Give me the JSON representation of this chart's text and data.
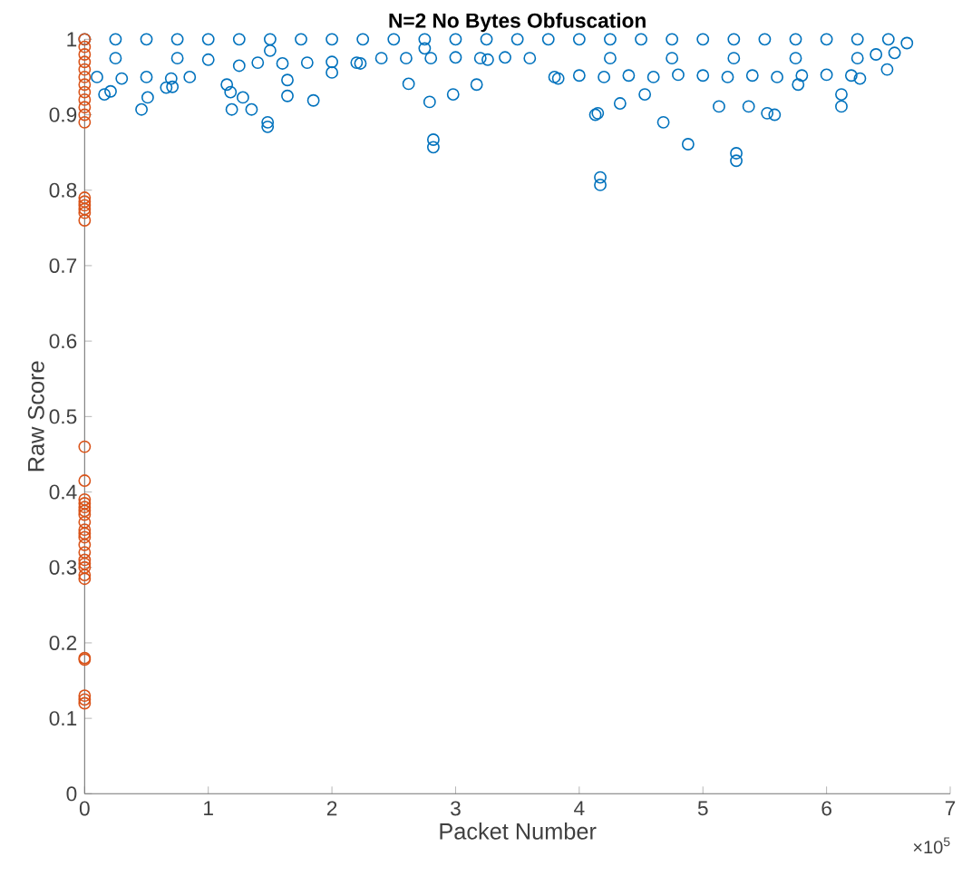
{
  "chart_data": {
    "type": "scatter",
    "title": "N=2 No Bytes Obfuscation",
    "xlabel": "Packet Number",
    "ylabel": "Raw Score",
    "annotations": [
      "×10$^{5}$"
    ],
    "xlim": [
      0,
      7
    ],
    "ylim": [
      0,
      1
    ],
    "xticks": [
      0,
      1,
      2,
      3,
      4,
      5,
      6,
      7
    ],
    "yticks": [
      0,
      0.1,
      0.2,
      0.3,
      0.4,
      0.5,
      0.6,
      0.7,
      0.8,
      0.9,
      1
    ],
    "marker": "circle",
    "grid": false,
    "series": [
      {
        "color": "#0072bd",
        "x": [
          0,
          0.25,
          0.5,
          0.75,
          1,
          1.25,
          1.5,
          1.75,
          2,
          2.25,
          2.5,
          2.75,
          3,
          3.25,
          3.5,
          3.75,
          4,
          4.25,
          4.5,
          4.75,
          5,
          5.25,
          5.5,
          5.75,
          6,
          6.25,
          6.5,
          6.65,
          0.1,
          0.3,
          0.5,
          0.7,
          0.85,
          1,
          1.15,
          1.18,
          1.25,
          1.4,
          1.6,
          1.8,
          2,
          2.2,
          2.4,
          2.6,
          2.8,
          3,
          3.2,
          3.4,
          3.6,
          3.8,
          4,
          4.2,
          4.4,
          4.6,
          4.8,
          5,
          5.2,
          5.4,
          5.6,
          5.8,
          6,
          6.2,
          6.4,
          6.55,
          0.25,
          0.75,
          1.5,
          2.75,
          4.25,
          4.75,
          5.25,
          5.75,
          6.25,
          0.16,
          0.21,
          0.46,
          0.51,
          0.66,
          0.71,
          1.19,
          1.28,
          1.35,
          1.48,
          1.48,
          1.64,
          1.64,
          1.85,
          2,
          2.23,
          2.62,
          2.79,
          2.82,
          2.82,
          2.98,
          3.17,
          3.26,
          3.83,
          4.13,
          4.15,
          4.17,
          4.17,
          4.33,
          4.53,
          4.68,
          4.88,
          5.13,
          5.27,
          5.27,
          5.37,
          5.52,
          5.58,
          5.77,
          6.12,
          6.12,
          6.27,
          6.49
        ],
        "values": [
          1,
          1,
          1,
          1,
          1,
          1,
          1,
          1,
          1,
          1,
          1,
          1,
          1,
          1,
          1,
          1,
          1,
          1,
          1,
          1,
          1,
          1,
          1,
          1,
          1,
          1,
          1,
          0.995,
          0.95,
          0.948,
          0.95,
          0.948,
          0.95,
          0.973,
          0.94,
          0.93,
          0.965,
          0.969,
          0.968,
          0.969,
          0.97,
          0.969,
          0.975,
          0.975,
          0.975,
          0.976,
          0.975,
          0.976,
          0.975,
          0.95,
          0.952,
          0.95,
          0.952,
          0.95,
          0.953,
          0.952,
          0.95,
          0.952,
          0.95,
          0.952,
          0.953,
          0.952,
          0.98,
          0.982,
          0.975,
          0.975,
          0.985,
          0.988,
          0.975,
          0.975,
          0.975,
          0.975,
          0.975,
          0.927,
          0.931,
          0.907,
          0.923,
          0.936,
          0.937,
          0.907,
          0.923,
          0.907,
          0.89,
          0.884,
          0.925,
          0.946,
          0.919,
          0.956,
          0.968,
          0.941,
          0.917,
          0.867,
          0.857,
          0.927,
          0.94,
          0.973,
          0.948,
          0.9,
          0.902,
          0.817,
          0.807,
          0.915,
          0.927,
          0.89,
          0.861,
          0.911,
          0.849,
          0.839,
          0.911,
          0.902,
          0.9,
          0.94,
          0.927,
          0.911,
          0.948,
          0.96
        ]
      },
      {
        "color": "#d95319",
        "x": [
          0,
          0,
          0,
          0,
          0,
          0,
          0,
          0,
          0,
          0,
          0,
          0,
          0,
          0,
          0,
          0,
          0,
          0,
          0,
          0,
          0,
          0,
          0,
          0,
          0,
          0,
          0,
          0,
          0,
          0,
          0,
          0,
          0,
          0,
          0,
          0,
          0,
          0,
          0,
          0,
          0
        ],
        "values": [
          1,
          0.99,
          0.98,
          0.97,
          0.96,
          0.95,
          0.94,
          0.93,
          0.92,
          0.91,
          0.9,
          0.89,
          0.79,
          0.785,
          0.78,
          0.775,
          0.77,
          0.76,
          0.46,
          0.415,
          0.39,
          0.385,
          0.38,
          0.375,
          0.37,
          0.345,
          0.34,
          0.33,
          0.32,
          0.31,
          0.3,
          0.29,
          0.285,
          0.18,
          0.178,
          0.13,
          0.125,
          0.12,
          0.35,
          0.36,
          0.305
        ]
      }
    ]
  }
}
